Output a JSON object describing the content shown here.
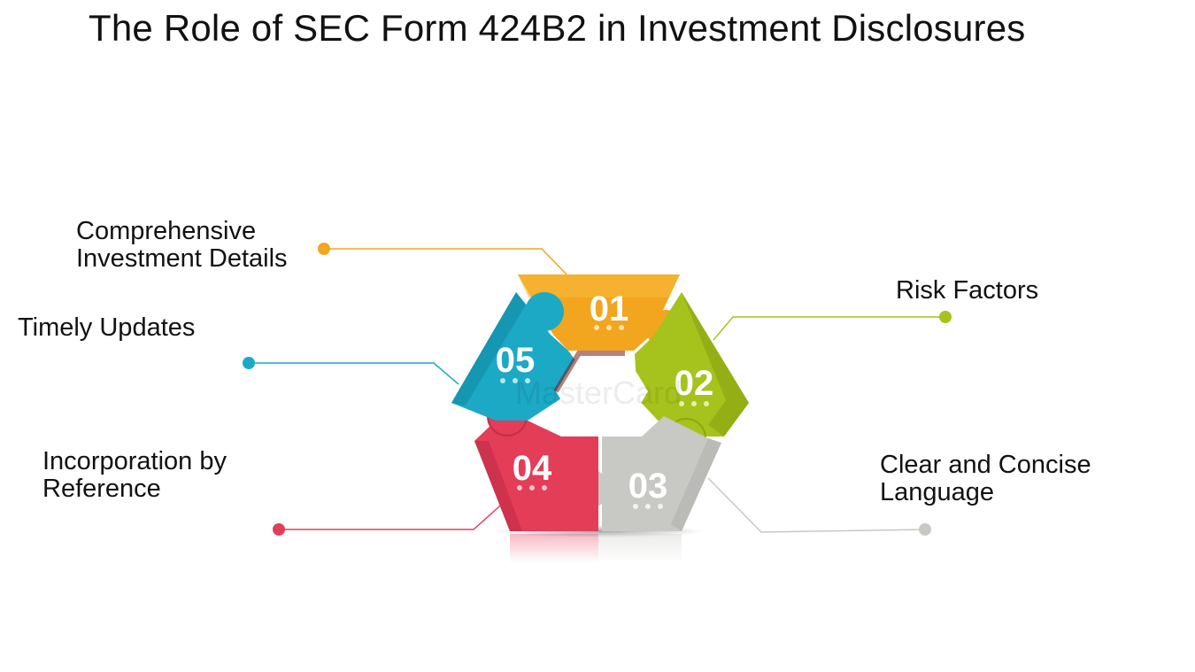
{
  "title": "The Role of SEC Form 424B2 in Investment Disclosures",
  "items": [
    {
      "number": "01",
      "lines": [
        "Comprehensive",
        "Investment Details"
      ],
      "color": "#f2a51e"
    },
    {
      "number": "02",
      "lines": [
        "Risk Factors"
      ],
      "color": "#a6c21c"
    },
    {
      "number": "03",
      "lines": [
        "Clear and Concise",
        "Language"
      ],
      "color": "#c8c8c4"
    },
    {
      "number": "04",
      "lines": [
        "Incorporation by",
        "Reference"
      ],
      "color": "#e33d58"
    },
    {
      "number": "05",
      "lines": [
        "Timely Updates"
      ],
      "color": "#1ba9c6"
    }
  ],
  "watermark": "MasterCard"
}
